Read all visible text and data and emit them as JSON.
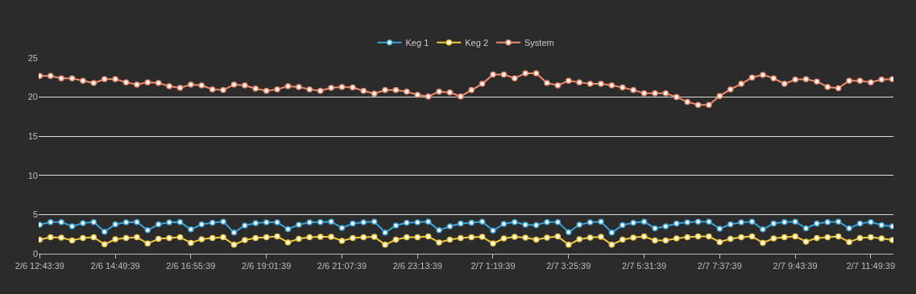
{
  "chart_data": {
    "type": "line",
    "categories": [
      "2/6 12:43:39",
      null,
      null,
      null,
      null,
      null,
      null,
      "2/6 14:49:39",
      null,
      null,
      null,
      null,
      null,
      null,
      "2/6 16:55:39",
      null,
      null,
      null,
      null,
      null,
      null,
      "2/6 19:01:39",
      null,
      null,
      null,
      null,
      null,
      null,
      "2/6 21:07:39",
      null,
      null,
      null,
      null,
      null,
      null,
      "2/6 23:13:39",
      null,
      null,
      null,
      null,
      null,
      null,
      "2/7 1:19:39",
      null,
      null,
      null,
      null,
      null,
      null,
      "2/7 3:25:39",
      null,
      null,
      null,
      null,
      null,
      null,
      "2/7 5:31:39",
      null,
      null,
      null,
      null,
      null,
      null,
      "2/7 7:37:39",
      null,
      null,
      null,
      null,
      null,
      null,
      "2/7 9:43:39",
      null,
      null,
      null,
      null,
      null,
      null,
      "2/7 11:49:39",
      null,
      null
    ],
    "series": [
      {
        "name": "Keg 1",
        "color": "#3ba3d8",
        "values": [
          3.7,
          4.05,
          4.05,
          3.5,
          3.9,
          4.05,
          2.8,
          3.75,
          4.0,
          4.05,
          3.0,
          3.75,
          4.0,
          4.05,
          3.1,
          3.75,
          3.95,
          4.1,
          2.7,
          3.6,
          3.9,
          4.0,
          4.0,
          3.15,
          3.7,
          4.0,
          4.05,
          4.1,
          3.3,
          3.85,
          4.0,
          4.1,
          2.7,
          3.6,
          3.95,
          4.0,
          4.1,
          3.0,
          3.5,
          3.85,
          3.95,
          4.1,
          2.95,
          3.8,
          4.05,
          3.7,
          3.65,
          4.05,
          4.05,
          2.75,
          3.7,
          4.0,
          4.1,
          2.7,
          3.65,
          3.95,
          4.1,
          3.25,
          3.5,
          3.85,
          4.0,
          4.1,
          4.1,
          3.2,
          3.75,
          4.0,
          4.1,
          3.1,
          3.85,
          4.05,
          4.1,
          3.25,
          3.85,
          4.05,
          4.1,
          3.25,
          3.85,
          4.05,
          3.65,
          3.5
        ]
      },
      {
        "name": "Keg 2",
        "color": "#f2c83c",
        "values": [
          1.8,
          2.1,
          2.05,
          1.7,
          2.0,
          2.1,
          1.2,
          1.85,
          2.0,
          2.1,
          1.3,
          1.9,
          2.0,
          2.1,
          1.4,
          1.85,
          2.0,
          2.1,
          1.15,
          1.75,
          2.0,
          2.1,
          2.2,
          1.45,
          1.9,
          2.1,
          2.15,
          2.15,
          1.65,
          2.0,
          2.1,
          2.15,
          1.15,
          1.8,
          2.1,
          2.1,
          2.2,
          1.45,
          1.8,
          2.0,
          2.1,
          2.15,
          1.3,
          1.95,
          2.15,
          2.05,
          1.8,
          2.05,
          2.2,
          1.15,
          1.85,
          2.05,
          2.15,
          1.15,
          1.8,
          2.05,
          2.2,
          1.7,
          1.7,
          1.95,
          2.1,
          2.2,
          2.2,
          1.5,
          1.9,
          2.1,
          2.2,
          1.4,
          1.95,
          2.1,
          2.2,
          1.55,
          2.0,
          2.1,
          2.2,
          1.5,
          2.0,
          2.1,
          1.95,
          1.75
        ]
      },
      {
        "name": "System",
        "color": "#f08c6c",
        "values": [
          22.7,
          22.7,
          22.4,
          22.4,
          22.1,
          21.8,
          22.3,
          22.3,
          21.9,
          21.6,
          21.9,
          21.8,
          21.4,
          21.2,
          21.6,
          21.5,
          21.0,
          20.9,
          21.6,
          21.5,
          21.1,
          20.8,
          21.0,
          21.4,
          21.3,
          21.0,
          20.8,
          21.2,
          21.3,
          21.25,
          20.8,
          20.45,
          20.9,
          20.9,
          20.7,
          20.3,
          20.1,
          20.7,
          20.6,
          20.1,
          20.9,
          21.7,
          22.9,
          22.9,
          22.4,
          23.05,
          23.05,
          21.8,
          21.5,
          22.1,
          21.9,
          21.7,
          21.7,
          21.5,
          21.25,
          20.9,
          20.5,
          20.5,
          20.5,
          20.0,
          19.4,
          19.0,
          19.0,
          20.15,
          21.0,
          21.7,
          22.5,
          22.85,
          22.4,
          21.7,
          22.25,
          22.3,
          22.0,
          21.3,
          21.15,
          22.1,
          22.1,
          21.9,
          22.25,
          22.3
        ]
      }
    ],
    "ylim": [
      0,
      25
    ],
    "yticks": [
      0,
      5,
      10,
      15,
      20,
      25
    ],
    "grid": "y",
    "legend": "top",
    "marker": "circle",
    "line_style": "solid"
  }
}
